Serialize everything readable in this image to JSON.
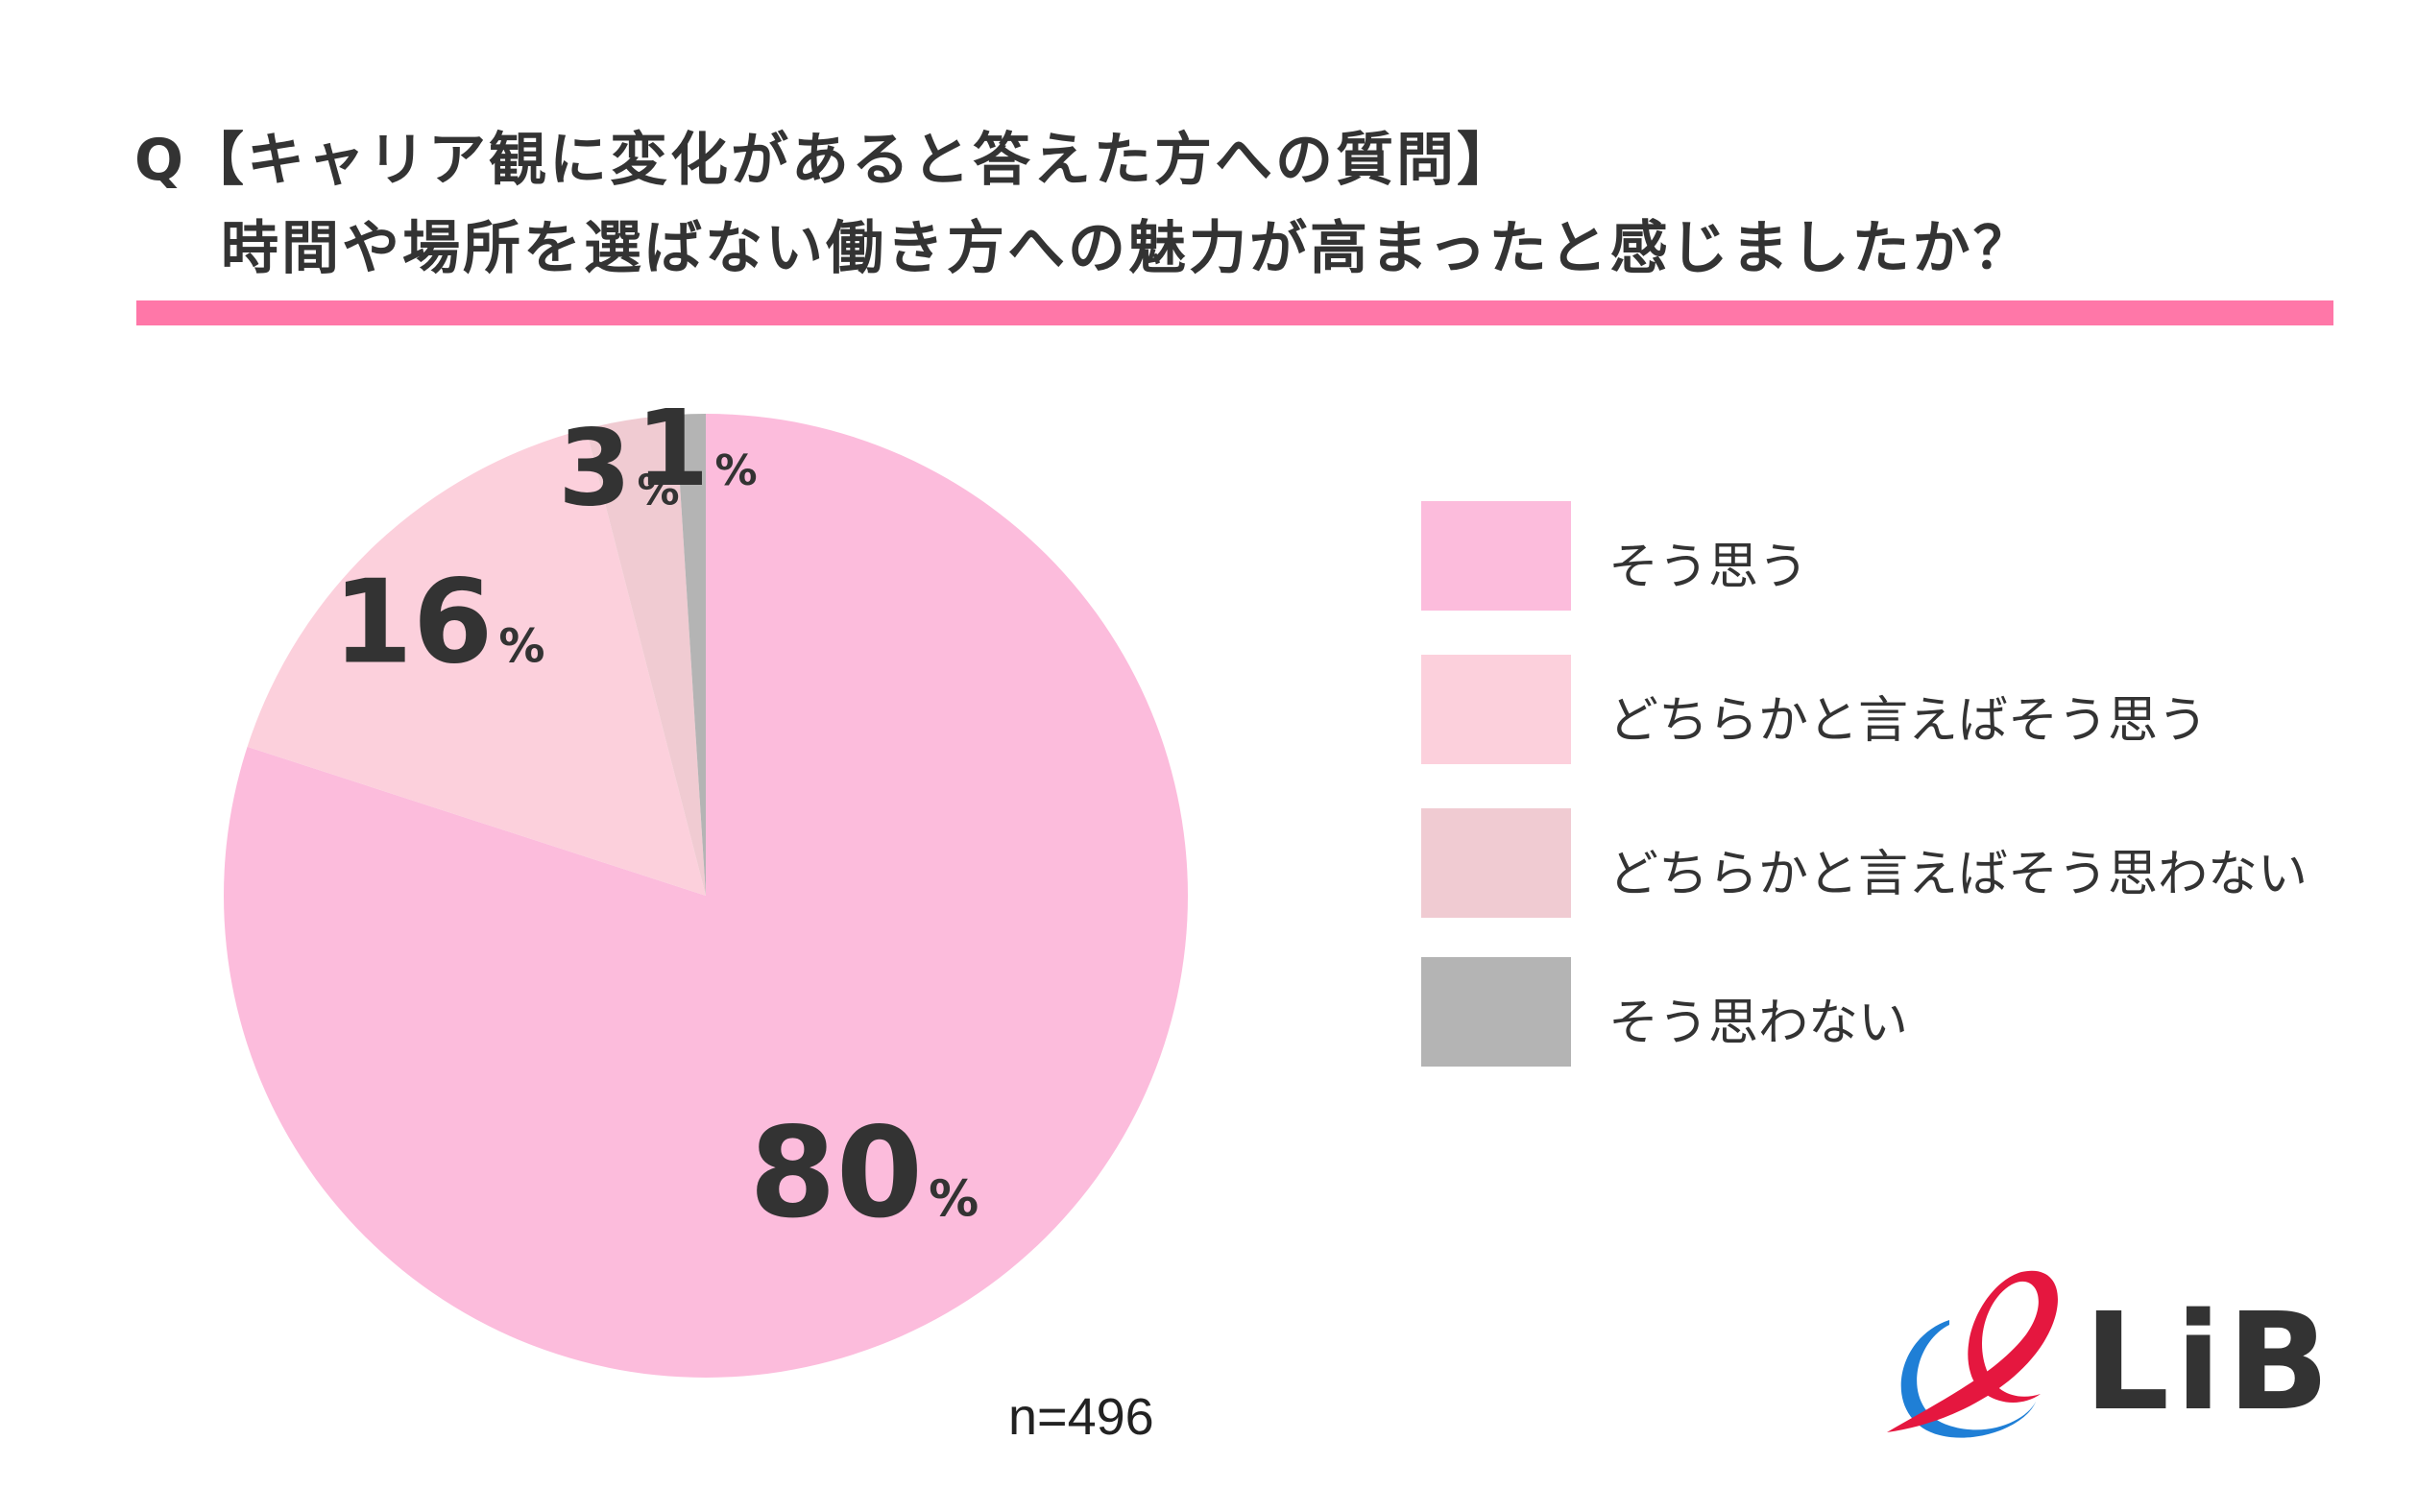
{
  "title": {
    "line1": "Q【キャリア観に変化があると答えた方への質問】",
    "line2": "時間や場所を選ばない働き方への魅力が高まったと感じましたか？"
  },
  "colors": {
    "accent_rule": "#ff77a8",
    "text": "#333333"
  },
  "chart_data": {
    "type": "pie",
    "slices": [
      {
        "label": "そう思う",
        "value": 80,
        "display": "80",
        "unit": "%",
        "color": "#fcbcdc"
      },
      {
        "label": "どちらかと言えばそう思う",
        "value": 16,
        "display": "16",
        "unit": "%",
        "color": "#fcd0dc"
      },
      {
        "label": "どちらかと言えばそう思わない",
        "value": 3,
        "display": "3",
        "unit": "%",
        "color": "#f0cbd2"
      },
      {
        "label": "そう思わない",
        "value": 1,
        "display": "1",
        "unit": "%",
        "color": "#b4b4b4"
      }
    ],
    "start": "12 o'clock",
    "direction": "clockwise",
    "legend_position": "right"
  },
  "sample_size": "n=496",
  "logo": {
    "text": "LiB",
    "colors": {
      "red": "#e5173f",
      "blue": "#1f7fd6"
    }
  }
}
